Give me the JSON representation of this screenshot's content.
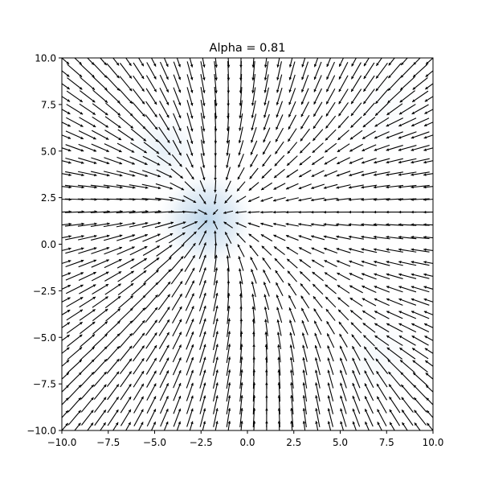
{
  "chart_data": {
    "type": "quiver",
    "title": "Alpha = 0.81",
    "xlabel": "",
    "ylabel": "",
    "xlim": [
      -10,
      10
    ],
    "ylim": [
      -10,
      10
    ],
    "xticks": [
      -10,
      -7.5,
      -5,
      -2.5,
      0,
      2.5,
      5,
      7.5,
      10
    ],
    "yticks": [
      -10,
      -7.5,
      -5,
      -2.5,
      0,
      2.5,
      5,
      7.5,
      10
    ],
    "xtick_labels": [
      "−10.0",
      "−7.5",
      "−5.0",
      "−2.5",
      "0.0",
      "2.5",
      "5.0",
      "7.5",
      "10.0"
    ],
    "ytick_labels": [
      "−10.0",
      "−7.5",
      "−5.0",
      "−2.5",
      "0.0",
      "2.5",
      "5.0",
      "7.5",
      "10.0"
    ],
    "grid": false,
    "quiver": {
      "n": 30,
      "arrow_color": "#000000",
      "attractors": [
        {
          "x": -2.2,
          "y": 1.3,
          "strength": 1.0
        },
        {
          "x": -4.5,
          "y": 5.0,
          "strength": 0.35
        },
        {
          "x": 7.5,
          "y": 7.0,
          "strength": 0.3
        },
        {
          "x": 7.0,
          "y": -6.0,
          "strength": 0.35
        }
      ]
    },
    "background_density": {
      "colormap": "Blues",
      "blobs": [
        {
          "x": -2.2,
          "y": 1.3,
          "spread": 1.6,
          "intensity": 1.0
        },
        {
          "x": -4.5,
          "y": 5.0,
          "spread": 1.3,
          "intensity": 0.35
        },
        {
          "x": 7.0,
          "y": -6.0,
          "spread": 1.5,
          "intensity": 0.15
        },
        {
          "x": 7.5,
          "y": 7.0,
          "spread": 1.5,
          "intensity": 0.1
        }
      ]
    }
  }
}
